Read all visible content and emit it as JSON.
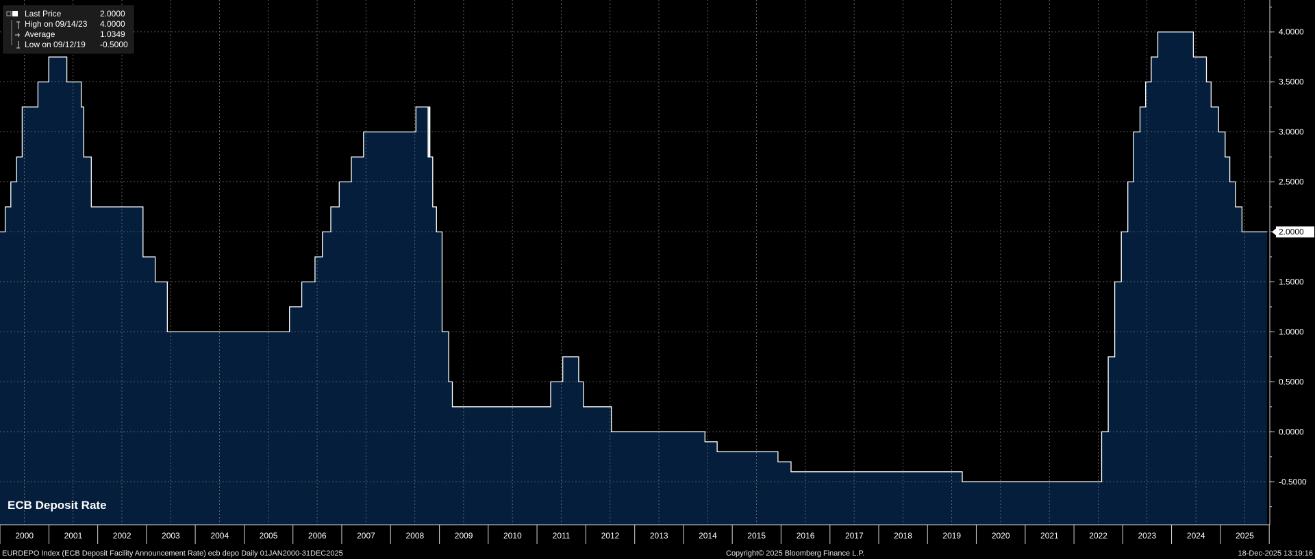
{
  "chart_data": {
    "type": "area",
    "title": "ECB Deposit Rate",
    "xlabel": "",
    "ylabel": "",
    "x_tick_labels": [
      "2000",
      "2001",
      "2002",
      "2003",
      "2004",
      "2005",
      "2006",
      "2007",
      "2008",
      "2009",
      "2010",
      "2011",
      "2012",
      "2013",
      "2014",
      "2015",
      "2016",
      "2017",
      "2018",
      "2019",
      "2020",
      "2021",
      "2022",
      "2023",
      "2024",
      "2025"
    ],
    "y_tick_labels": [
      "4.0000",
      "3.5000",
      "3.0000",
      "2.5000",
      "2.0000",
      "1.5000",
      "1.0000",
      "0.5000",
      "0.0000",
      "-0.5000"
    ],
    "y_ticks": [
      4.0,
      3.5,
      3.0,
      2.5,
      2.0,
      1.5,
      1.0,
      0.5,
      0.0,
      -0.5
    ],
    "xlim": [
      "2000-01-01",
      "2025-12-31"
    ],
    "ylim": [
      -0.93,
      4.32
    ],
    "grid": true,
    "legend_position": "top-left",
    "series": [
      {
        "name": "Last Price",
        "color": "#ffffff",
        "fill": "#041e3b",
        "step": true,
        "points": [
          [
            "2000-01-01",
            2.0
          ],
          [
            "2000-02-09",
            2.25
          ],
          [
            "2000-03-22",
            2.5
          ],
          [
            "2000-05-04",
            2.75
          ],
          [
            "2000-06-15",
            3.25
          ],
          [
            "2000-10-11",
            3.5
          ],
          [
            "2000-12-31",
            3.75
          ],
          [
            "2001-05-15",
            3.5
          ],
          [
            "2001-08-31",
            3.25
          ],
          [
            "2001-09-18",
            2.75
          ],
          [
            "2001-11-14",
            2.25
          ],
          [
            "2002-12-06",
            1.75
          ],
          [
            "2003-03-07",
            1.5
          ],
          [
            "2003-06-06",
            1.0
          ],
          [
            "2005-12-06",
            1.25
          ],
          [
            "2006-03-08",
            1.5
          ],
          [
            "2006-06-15",
            1.75
          ],
          [
            "2006-08-09",
            2.0
          ],
          [
            "2006-10-11",
            2.25
          ],
          [
            "2006-12-13",
            2.5
          ],
          [
            "2007-03-14",
            2.75
          ],
          [
            "2007-06-13",
            3.0
          ],
          [
            "2008-07-09",
            3.25
          ],
          [
            "2008-10-08",
            2.75
          ],
          [
            "2008-10-15",
            3.25
          ],
          [
            "2008-10-22",
            2.75
          ],
          [
            "2008-11-12",
            2.25
          ],
          [
            "2008-12-10",
            2.0
          ],
          [
            "2009-01-21",
            1.0
          ],
          [
            "2009-03-11",
            0.5
          ],
          [
            "2009-04-08",
            0.25
          ],
          [
            "2011-04-13",
            0.5
          ],
          [
            "2011-07-13",
            0.75
          ],
          [
            "2011-11-09",
            0.5
          ],
          [
            "2011-12-14",
            0.25
          ],
          [
            "2012-07-11",
            0.0
          ],
          [
            "2014-06-11",
            -0.1
          ],
          [
            "2014-09-10",
            -0.2
          ],
          [
            "2015-12-09",
            -0.3
          ],
          [
            "2016-03-16",
            -0.4
          ],
          [
            "2019-09-18",
            -0.5
          ],
          [
            "2022-07-27",
            0.0
          ],
          [
            "2022-09-14",
            0.75
          ],
          [
            "2022-11-02",
            1.5
          ],
          [
            "2022-12-21",
            2.0
          ],
          [
            "2023-02-08",
            2.5
          ],
          [
            "2023-03-22",
            3.0
          ],
          [
            "2023-05-10",
            3.25
          ],
          [
            "2023-06-21",
            3.5
          ],
          [
            "2023-08-02",
            3.75
          ],
          [
            "2023-09-20",
            4.0
          ],
          [
            "2024-06-12",
            3.75
          ],
          [
            "2024-09-18",
            3.5
          ],
          [
            "2024-10-23",
            3.25
          ],
          [
            "2024-12-18",
            3.0
          ],
          [
            "2025-02-05",
            2.75
          ],
          [
            "2025-03-12",
            2.5
          ],
          [
            "2025-04-23",
            2.25
          ],
          [
            "2025-06-11",
            2.0
          ],
          [
            "2025-12-18",
            2.0
          ]
        ]
      }
    ],
    "last_value_label": "2.0000"
  },
  "legend": {
    "items": [
      {
        "label": "Last Price",
        "value": "2.0000",
        "glyph": "filled-square-icon"
      },
      {
        "label": "High on 09/14/23",
        "value": "4.0000",
        "glyph": "high-marker-icon"
      },
      {
        "label": "Average",
        "value": "1.0349",
        "glyph": "average-marker-icon"
      },
      {
        "label": "Low on 09/12/19",
        "value": "-0.5000",
        "glyph": "low-marker-icon"
      }
    ]
  },
  "chart_label": "ECB Deposit Rate",
  "footer": {
    "left": "EURDEPO Index (ECB Deposit Facility Announcement Rate) ecb depo Daily 01JAN2000-31DEC2025",
    "center": "Copyright© 2025 Bloomberg Finance L.P.",
    "right": "18-Dec-2025 13:19:16"
  },
  "colors": {
    "background": "#000000",
    "area_fill": "#041e3b",
    "line": "#ffffff",
    "grid": "#7a7a7a",
    "legend_bg": "#1c1c1c"
  }
}
